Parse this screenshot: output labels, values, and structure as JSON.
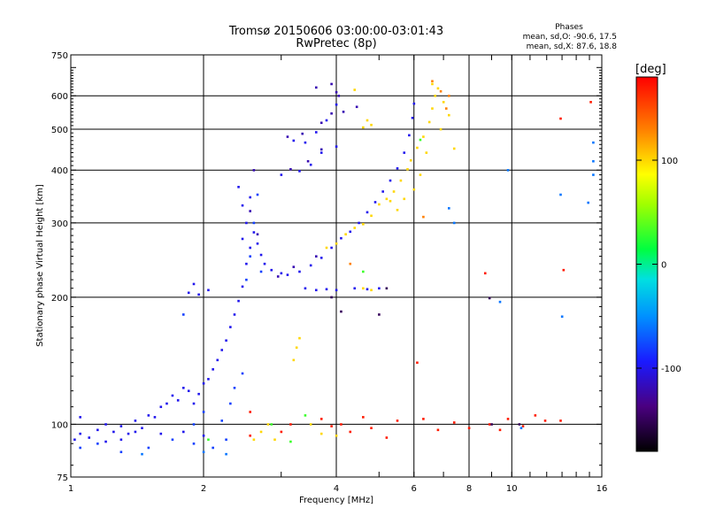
{
  "chart_data": {
    "type": "scatter",
    "title": "Tromsø 20150606 03:00:00-03:01:43",
    "subtitle": "RwPretec (8p)",
    "stats": {
      "heading": "Phases",
      "line1": "mean, sd,O: -90.6, 17.5",
      "line2": "mean, sd,X:  87.6, 18.8"
    },
    "xlabel": "Frequency [MHz]",
    "ylabel": "Stationary phase Virtual Height [km]",
    "x_scale": "log",
    "y_scale": "log",
    "xlim": [
      1,
      16
    ],
    "ylim": [
      75,
      750
    ],
    "x_ticks": [
      1,
      2,
      4,
      6,
      8,
      10,
      16
    ],
    "y_ticks": [
      75,
      100,
      200,
      300,
      400,
      500,
      600,
      750
    ],
    "grid": true,
    "colorbar": {
      "label": "[deg]",
      "range": [
        -180,
        180
      ],
      "ticks": [
        -100,
        0,
        100
      ]
    },
    "series": [
      {
        "phase_deg": -100,
        "points": [
          [
            1.02,
            92
          ],
          [
            1.05,
            95
          ],
          [
            1.1,
            93
          ],
          [
            1.15,
            97
          ],
          [
            1.2,
            91
          ],
          [
            1.25,
            96
          ],
          [
            1.3,
            99
          ],
          [
            1.35,
            95
          ],
          [
            1.4,
            102
          ],
          [
            1.45,
            98
          ],
          [
            1.5,
            105
          ],
          [
            1.55,
            104
          ],
          [
            1.6,
            110
          ],
          [
            1.65,
            112
          ],
          [
            1.7,
            117
          ],
          [
            1.75,
            114
          ],
          [
            1.8,
            122
          ],
          [
            1.85,
            120
          ],
          [
            1.9,
            112
          ],
          [
            1.95,
            118
          ],
          [
            2.0,
            125
          ],
          [
            2.05,
            128
          ],
          [
            2.1,
            135
          ],
          [
            2.15,
            142
          ],
          [
            2.2,
            150
          ],
          [
            2.25,
            158
          ],
          [
            2.3,
            170
          ],
          [
            2.35,
            182
          ],
          [
            2.4,
            196
          ],
          [
            2.45,
            212
          ],
          [
            2.5,
            240
          ],
          [
            2.55,
            262
          ],
          [
            2.6,
            285
          ],
          [
            2.65,
            268
          ],
          [
            2.7,
            252
          ],
          [
            2.75,
            240
          ],
          [
            2.85,
            232
          ],
          [
            3.0,
            228
          ],
          [
            3.1,
            226
          ],
          [
            3.3,
            230
          ],
          [
            3.5,
            238
          ],
          [
            3.7,
            248
          ],
          [
            3.9,
            262
          ],
          [
            4.1,
            276
          ],
          [
            4.3,
            286
          ],
          [
            4.5,
            300
          ],
          [
            4.7,
            318
          ],
          [
            4.9,
            336
          ],
          [
            5.1,
            356
          ],
          [
            5.3,
            378
          ],
          [
            5.5,
            404
          ],
          [
            5.7,
            440
          ],
          [
            5.85,
            484
          ],
          [
            5.95,
            532
          ],
          [
            6.0,
            575
          ],
          [
            1.05,
            104
          ],
          [
            1.2,
            100
          ],
          [
            1.3,
            92
          ],
          [
            1.4,
            96
          ],
          [
            1.6,
            95
          ],
          [
            1.8,
            96
          ],
          [
            2.0,
            94
          ],
          [
            1.85,
            205
          ],
          [
            1.95,
            203
          ],
          [
            2.05,
            208
          ],
          [
            1.9,
            215
          ],
          [
            3.4,
            210
          ],
          [
            3.6,
            208
          ],
          [
            3.8,
            209
          ],
          [
            4.0,
            208
          ],
          [
            4.4,
            210
          ],
          [
            4.7,
            209
          ],
          [
            5.0,
            210
          ],
          [
            3.2,
            470
          ],
          [
            3.4,
            465
          ],
          [
            3.6,
            492
          ],
          [
            3.8,
            525
          ],
          [
            4.0,
            572
          ],
          [
            3.0,
            390
          ],
          [
            3.3,
            398
          ],
          [
            3.5,
            412
          ],
          [
            3.7,
            440
          ],
          [
            4.0,
            455
          ],
          [
            2.45,
            330
          ],
          [
            2.55,
            345
          ],
          [
            2.4,
            365
          ],
          [
            2.5,
            300
          ],
          [
            2.45,
            275
          ]
        ]
      },
      {
        "phase_deg": -120,
        "points": [
          [
            2.95,
            224
          ],
          [
            3.2,
            236
          ],
          [
            3.6,
            250
          ],
          [
            3.15,
            402
          ],
          [
            3.45,
            420
          ],
          [
            3.7,
            448
          ],
          [
            3.1,
            480
          ],
          [
            3.35,
            488
          ],
          [
            3.7,
            518
          ],
          [
            3.9,
            545
          ],
          [
            4.05,
            600
          ],
          [
            3.6,
            628
          ],
          [
            3.9,
            640
          ],
          [
            4.0,
            612
          ],
          [
            4.45,
            565
          ],
          [
            4.15,
            550
          ],
          [
            2.6,
            400
          ],
          [
            2.55,
            320
          ],
          [
            2.65,
            282
          ]
        ]
      },
      {
        "phase_deg": -80,
        "points": [
          [
            1.05,
            88
          ],
          [
            1.15,
            90
          ],
          [
            1.3,
            86
          ],
          [
            1.5,
            88
          ],
          [
            1.7,
            92
          ],
          [
            1.9,
            90
          ],
          [
            2.1,
            88
          ],
          [
            2.3,
            112
          ],
          [
            2.45,
            132
          ],
          [
            2.35,
            122
          ],
          [
            2.5,
            220
          ],
          [
            2.6,
            300
          ],
          [
            2.65,
            350
          ],
          [
            2.7,
            230
          ],
          [
            2.55,
            250
          ],
          [
            1.8,
            182
          ],
          [
            1.9,
            100
          ],
          [
            2.0,
            107
          ],
          [
            2.2,
            102
          ],
          [
            2.25,
            92
          ]
        ]
      },
      {
        "phase_deg": 100,
        "points": [
          [
            3.8,
            262
          ],
          [
            4.0,
            268
          ],
          [
            4.2,
            282
          ],
          [
            4.4,
            292
          ],
          [
            4.6,
            298
          ],
          [
            4.8,
            312
          ],
          [
            5.0,
            332
          ],
          [
            5.2,
            342
          ],
          [
            5.4,
            356
          ],
          [
            5.6,
            378
          ],
          [
            5.8,
            402
          ],
          [
            5.9,
            422
          ],
          [
            6.1,
            452
          ],
          [
            6.3,
            480
          ],
          [
            6.5,
            520
          ],
          [
            6.6,
            560
          ],
          [
            6.7,
            600
          ],
          [
            6.8,
            625
          ],
          [
            7.0,
            580
          ],
          [
            7.2,
            540
          ],
          [
            6.9,
            500
          ],
          [
            6.4,
            440
          ],
          [
            6.2,
            390
          ],
          [
            6.0,
            360
          ],
          [
            5.7,
            342
          ],
          [
            5.5,
            322
          ],
          [
            5.3,
            338
          ],
          [
            4.6,
            210
          ],
          [
            4.8,
            208
          ],
          [
            4.4,
            620
          ],
          [
            4.6,
            505
          ],
          [
            4.8,
            512
          ],
          [
            4.7,
            525
          ],
          [
            2.7,
            96
          ],
          [
            2.8,
            100
          ],
          [
            2.9,
            92
          ],
          [
            2.6,
            92
          ],
          [
            3.2,
            142
          ],
          [
            3.25,
            152
          ],
          [
            3.3,
            160
          ],
          [
            3.5,
            100
          ],
          [
            3.7,
            95
          ],
          [
            4.0,
            94
          ],
          [
            7.4,
            450
          ],
          [
            6.6,
            640
          ]
        ]
      },
      {
        "phase_deg": 130,
        "points": [
          [
            6.6,
            650
          ],
          [
            6.9,
            615
          ],
          [
            7.2,
            600
          ],
          [
            4.3,
            240
          ],
          [
            6.3,
            310
          ],
          [
            7.1,
            560
          ]
        ]
      },
      {
        "phase_deg": 30,
        "points": [
          [
            2.05,
            92
          ],
          [
            3.4,
            105
          ],
          [
            3.15,
            91
          ],
          [
            4.6,
            230
          ],
          [
            6.2,
            472
          ],
          [
            2.85,
            100
          ]
        ]
      },
      {
        "phase_deg": 170,
        "points": [
          [
            2.55,
            94
          ],
          [
            3.0,
            96
          ],
          [
            3.15,
            100
          ],
          [
            3.7,
            103
          ],
          [
            4.3,
            96
          ],
          [
            4.8,
            98
          ],
          [
            5.5,
            102
          ],
          [
            6.3,
            103
          ],
          [
            6.8,
            97
          ],
          [
            7.4,
            101
          ],
          [
            8.0,
            98
          ],
          [
            8.9,
            100
          ],
          [
            9.4,
            97
          ],
          [
            9.8,
            103
          ],
          [
            10.6,
            99
          ],
          [
            11.3,
            105
          ],
          [
            11.9,
            102
          ],
          [
            12.9,
            102
          ],
          [
            4.6,
            104
          ],
          [
            5.2,
            93
          ],
          [
            3.9,
            99
          ],
          [
            8.7,
            228
          ],
          [
            13.1,
            232
          ],
          [
            12.9,
            530
          ],
          [
            15.1,
            580
          ],
          [
            4.1,
            100
          ],
          [
            6.1,
            140
          ],
          [
            2.55,
            107
          ]
        ]
      },
      {
        "phase_deg": -60,
        "points": [
          [
            9.8,
            400
          ],
          [
            12.9,
            350
          ],
          [
            15.3,
            420
          ],
          [
            15.3,
            465
          ],
          [
            15.3,
            390
          ],
          [
            14.9,
            335
          ],
          [
            13.0,
            180
          ],
          [
            9.4,
            195
          ],
          [
            7.2,
            325
          ],
          [
            7.4,
            300
          ],
          [
            10.5,
            98
          ],
          [
            2.0,
            86
          ],
          [
            2.25,
            85
          ],
          [
            1.45,
            85
          ]
        ]
      },
      {
        "phase_deg": -150,
        "points": [
          [
            3.9,
            200
          ],
          [
            4.1,
            185
          ],
          [
            5.0,
            182
          ],
          [
            8.9,
            199
          ],
          [
            9.0,
            100
          ],
          [
            10.4,
            100
          ],
          [
            5.2,
            210
          ]
        ]
      }
    ]
  }
}
